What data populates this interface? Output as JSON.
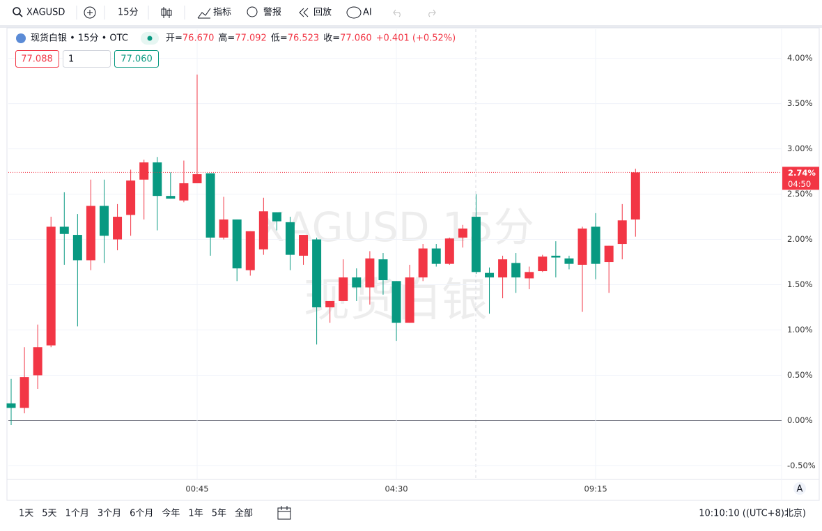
{
  "toolbar": {
    "symbol": "XAGUSD",
    "interval": "15分",
    "indicators": "指标",
    "alerts": "警报",
    "replay": "回放",
    "ai": "AI"
  },
  "legend": {
    "name": "现货白银 • 15分 • OTC",
    "items": [
      {
        "label": "开=",
        "value": "76.670"
      },
      {
        "label": "高=",
        "value": "77.092"
      },
      {
        "label": "低=",
        "value": "76.523"
      },
      {
        "label": "收=",
        "value": "77.060"
      }
    ],
    "change": "+0.401 (+0.52%)",
    "sell": "77.088",
    "qty": "1",
    "buy": "77.060"
  },
  "chart_data": {
    "type": "candlestick",
    "watermark": [
      "XAGUSD 15分",
      "现货白银"
    ],
    "categories": [
      null,
      null,
      null,
      null,
      null,
      null,
      null,
      null,
      null,
      null,
      null,
      null,
      null,
      null,
      "00:45",
      null,
      null,
      null,
      null,
      null,
      null,
      null,
      null,
      null,
      null,
      null,
      null,
      null,
      null,
      "04:30",
      null,
      null,
      null,
      null,
      null,
      null,
      null,
      null,
      null,
      null,
      null,
      null,
      null,
      null,
      "09:15",
      null,
      null,
      null
    ],
    "open": [
      0.19,
      0.14,
      0.5,
      0.83,
      2.14,
      2.05,
      1.77,
      2.37,
      2.0,
      2.27,
      2.66,
      2.85,
      2.48,
      2.43,
      2.62,
      2.73,
      2.02,
      2.22,
      1.66,
      1.89,
      2.3,
      2.19,
      1.82,
      2.0,
      1.25,
      1.32,
      1.58,
      1.47,
      1.78,
      1.54,
      1.08,
      1.58,
      1.9,
      1.73,
      2.02,
      2.25,
      1.63,
      1.58,
      1.74,
      1.57,
      1.65,
      1.82,
      1.79,
      1.72,
      2.14,
      1.75,
      1.95,
      2.22
    ],
    "high": [
      0.46,
      0.81,
      1.06,
      2.25,
      2.52,
      2.28,
      2.66,
      2.66,
      2.39,
      2.77,
      2.88,
      2.91,
      2.74,
      2.87,
      3.82,
      2.73,
      2.47,
      2.22,
      2.09,
      2.46,
      2.3,
      2.25,
      2.05,
      2.02,
      1.32,
      1.78,
      1.68,
      1.87,
      1.85,
      1.54,
      1.72,
      1.95,
      1.95,
      2.02,
      2.16,
      2.5,
      1.69,
      1.82,
      1.85,
      1.7,
      1.83,
      1.98,
      1.82,
      2.14,
      2.29,
      1.93,
      2.39,
      2.78
    ],
    "low": [
      -0.05,
      0.08,
      0.35,
      0.81,
      1.72,
      1.04,
      1.66,
      1.74,
      1.88,
      2.04,
      2.22,
      2.1,
      2.45,
      2.41,
      2.62,
      1.82,
      2.0,
      1.54,
      1.6,
      1.83,
      2.1,
      1.66,
      1.72,
      0.84,
      1.08,
      1.32,
      1.32,
      1.28,
      1.39,
      0.88,
      1.08,
      1.54,
      1.7,
      1.72,
      1.91,
      1.62,
      1.18,
      1.35,
      1.41,
      1.45,
      1.64,
      1.58,
      1.67,
      1.2,
      1.56,
      1.41,
      1.78,
      2.03
    ],
    "close": [
      0.14,
      0.48,
      0.81,
      2.14,
      2.06,
      1.77,
      2.37,
      2.04,
      2.25,
      2.65,
      2.85,
      2.48,
      2.45,
      2.62,
      2.72,
      2.02,
      2.22,
      1.68,
      2.09,
      2.31,
      2.2,
      1.83,
      2.05,
      1.25,
      1.32,
      1.58,
      1.47,
      1.79,
      1.55,
      1.08,
      1.58,
      1.9,
      1.73,
      2.01,
      2.12,
      1.64,
      1.58,
      1.78,
      1.58,
      1.64,
      1.81,
      1.8,
      1.73,
      2.12,
      1.73,
      1.93,
      2.21,
      2.74
    ],
    "up_color": "#f23645",
    "down_color": "#089981",
    "ylim": [
      -0.65,
      4.32
    ],
    "yticks": [
      {
        "value": -0.5,
        "label": "-0.50%"
      },
      {
        "value": 0,
        "label": "0.00%"
      },
      {
        "value": 0.5,
        "label": "0.50%"
      },
      {
        "value": 1,
        "label": "1.00%"
      },
      {
        "value": 1.5,
        "label": "1.50%"
      },
      {
        "value": 2,
        "label": "2.00%"
      },
      {
        "value": 2.5,
        "label": "2.50%"
      },
      {
        "value": 3,
        "label": "3.00%"
      },
      {
        "value": 3.5,
        "label": "3.50%"
      },
      {
        "value": 4,
        "label": "4.00%"
      }
    ],
    "grid": true,
    "last_price": {
      "value": 2.74,
      "label": "2.74%"
    },
    "countdown": "04:50"
  },
  "footer": {
    "ranges": [
      "1天",
      "5天",
      "1个月",
      "3个月",
      "6个月",
      "今年",
      "1年",
      "5年",
      "全部"
    ],
    "time": "10:10:10 ((UTC+8)北京)",
    "scale": "A"
  }
}
